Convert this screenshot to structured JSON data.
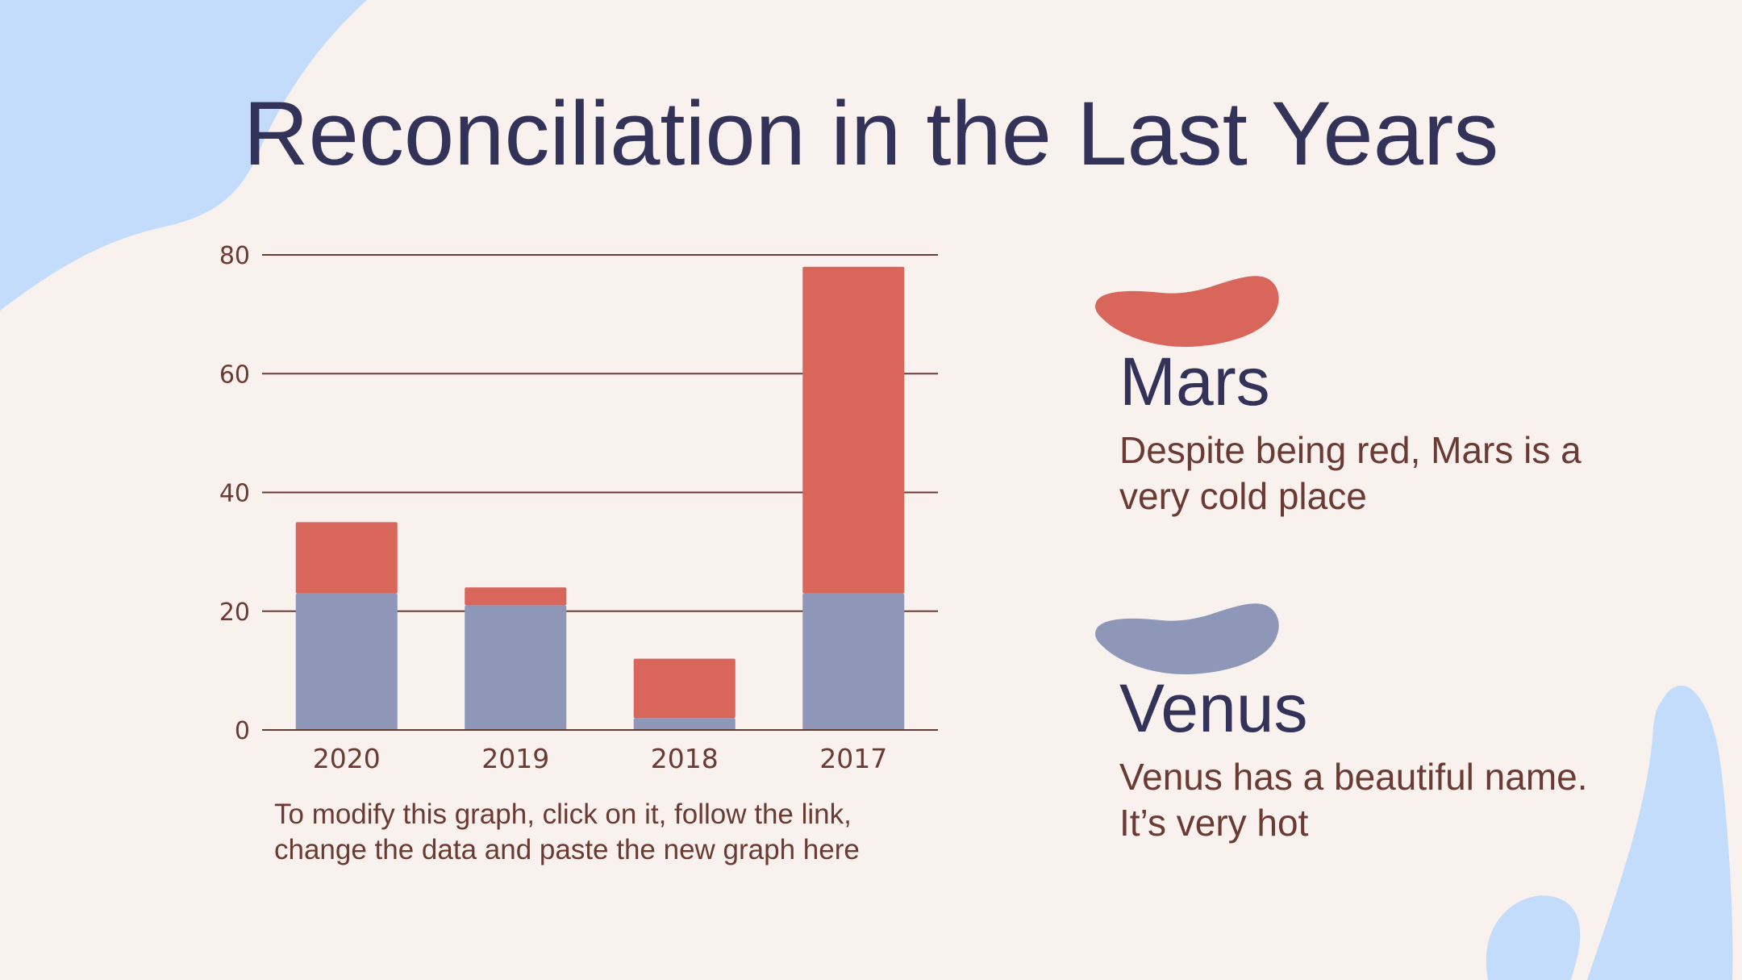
{
  "title": "Reconciliation in the Last Years",
  "colors": {
    "background": "#f9f1ee",
    "decoration": "#c4dcfc",
    "title": "#33335a",
    "text": "#6b3a32",
    "mars": "#d8665b",
    "venus": "#8e97b8"
  },
  "chart_data": {
    "type": "bar",
    "stacked": true,
    "categories": [
      "2020",
      "2019",
      "2018",
      "2017"
    ],
    "series": [
      {
        "color": "#8e97b8",
        "values": [
          23,
          21,
          2,
          23
        ]
      },
      {
        "color": "#d8665b",
        "values": [
          12,
          3,
          10,
          55
        ]
      }
    ],
    "ylim": [
      0,
      80
    ],
    "yticks": [
      0,
      20,
      40,
      60,
      80
    ],
    "grid": true
  },
  "chart_note": "To modify this graph, click on it, follow the link, change the data and paste the new graph here",
  "planets": [
    {
      "name": "Mars",
      "description": "Despite being red, Mars is a very cold place"
    },
    {
      "name": "Venus",
      "description": "Venus has a beautiful name. It’s very hot"
    }
  ]
}
